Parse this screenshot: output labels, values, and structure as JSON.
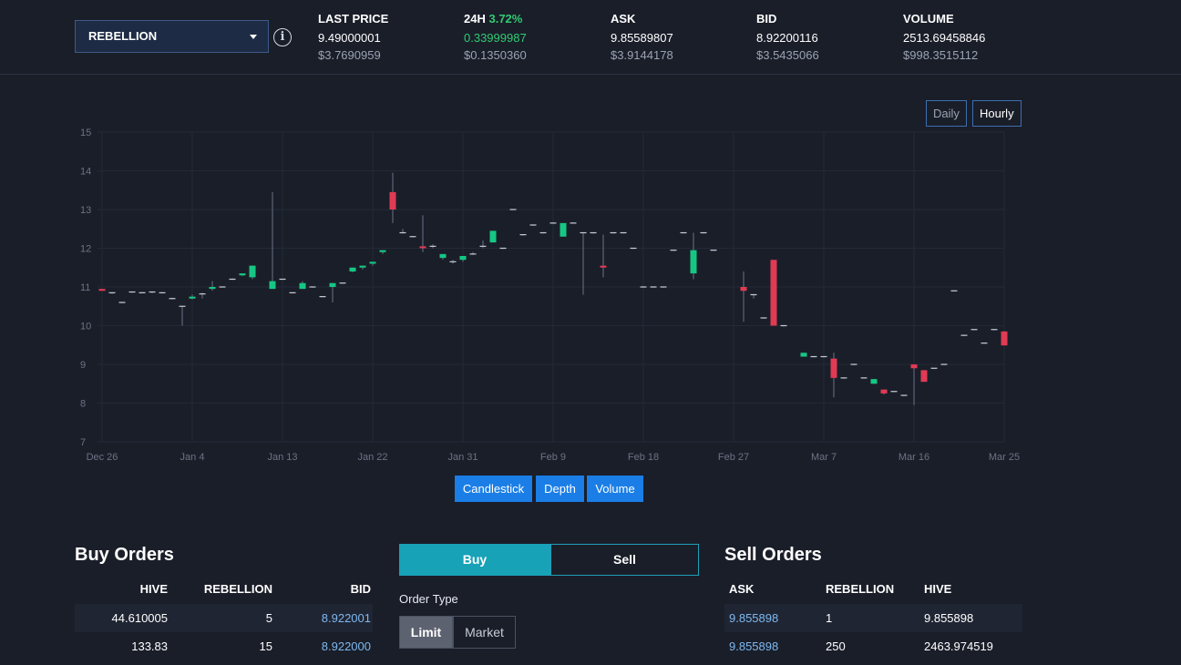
{
  "token_selector": {
    "value": "REBELLION"
  },
  "stats": [
    {
      "label": "LAST PRICE",
      "pct": "",
      "value": "9.49000001",
      "usd": "$3.7690959",
      "green": false
    },
    {
      "label": "24H",
      "pct": "3.72%",
      "value": "0.33999987",
      "usd": "$0.1350360",
      "green": true
    },
    {
      "label": "ASK",
      "pct": "",
      "value": "9.85589807",
      "usd": "$3.9144178",
      "green": false
    },
    {
      "label": "BID",
      "pct": "",
      "value": "8.92200116",
      "usd": "$3.5435066",
      "green": false
    },
    {
      "label": "VOLUME",
      "pct": "",
      "value": "2513.69458846",
      "usd": "$998.3515112",
      "green": false
    }
  ],
  "intervals": {
    "daily": "Daily",
    "hourly": "Hourly"
  },
  "chart_tabs": [
    "Candlestick",
    "Depth",
    "Volume"
  ],
  "chart_data": {
    "type": "candlestick",
    "y_ticks": [
      7,
      8,
      9,
      10,
      11,
      12,
      13,
      14,
      15
    ],
    "ylim": [
      7,
      15
    ],
    "x_tick_labels": [
      "Dec 26",
      "Jan 4",
      "Jan 13",
      "Jan 22",
      "Jan 31",
      "Feb 9",
      "Feb 18",
      "Feb 27",
      "Mar 7",
      "Mar 16",
      "Mar 25"
    ],
    "x_tick_days": [
      0,
      9,
      18,
      27,
      36,
      45,
      54,
      63,
      72,
      81,
      90
    ],
    "grid": true,
    "colors": {
      "up": "#16c784",
      "down": "#e03a54",
      "wick": "#6b7385",
      "grid": "#232938"
    },
    "candles": [
      {
        "d": 0,
        "o": 10.95,
        "h": 10.95,
        "l": 10.9,
        "c": 10.9
      },
      {
        "d": 1,
        "o": 10.85,
        "h": 10.85,
        "l": 10.82,
        "c": 10.84
      },
      {
        "d": 2,
        "o": 10.6,
        "h": 10.6,
        "l": 10.58,
        "c": 10.6
      },
      {
        "d": 3,
        "o": 10.85,
        "h": 10.88,
        "l": 10.85,
        "c": 10.87
      },
      {
        "d": 4,
        "o": 10.85,
        "h": 10.87,
        "l": 10.84,
        "c": 10.85
      },
      {
        "d": 5,
        "o": 10.84,
        "h": 10.88,
        "l": 10.84,
        "c": 10.87
      },
      {
        "d": 6,
        "o": 10.85,
        "h": 10.85,
        "l": 10.83,
        "c": 10.83
      },
      {
        "d": 7,
        "o": 10.7,
        "h": 10.72,
        "l": 10.68,
        "c": 10.7
      },
      {
        "d": 8,
        "o": 10.5,
        "h": 10.5,
        "l": 10.0,
        "c": 10.5
      },
      {
        "d": 9,
        "o": 10.7,
        "h": 10.8,
        "l": 10.68,
        "c": 10.75
      },
      {
        "d": 10,
        "o": 10.8,
        "h": 10.85,
        "l": 10.7,
        "c": 10.82
      },
      {
        "d": 11,
        "o": 10.95,
        "h": 11.15,
        "l": 10.9,
        "c": 11.0
      },
      {
        "d": 12,
        "o": 11.0,
        "h": 11.0,
        "l": 10.98,
        "c": 11.0
      },
      {
        "d": 13,
        "o": 11.2,
        "h": 11.22,
        "l": 11.18,
        "c": 11.2
      },
      {
        "d": 14,
        "o": 11.3,
        "h": 11.35,
        "l": 11.28,
        "c": 11.35
      },
      {
        "d": 15,
        "o": 11.25,
        "h": 11.55,
        "l": 11.2,
        "c": 11.55
      },
      {
        "d": 17,
        "o": 10.95,
        "h": 13.45,
        "l": 10.95,
        "c": 11.15
      },
      {
        "d": 18,
        "o": 11.2,
        "h": 11.2,
        "l": 11.18,
        "c": 11.2
      },
      {
        "d": 19,
        "o": 10.85,
        "h": 10.85,
        "l": 10.83,
        "c": 10.85
      },
      {
        "d": 20,
        "o": 10.95,
        "h": 11.15,
        "l": 10.95,
        "c": 11.1
      },
      {
        "d": 21,
        "o": 11.0,
        "h": 11.0,
        "l": 10.98,
        "c": 11.0
      },
      {
        "d": 22,
        "o": 10.75,
        "h": 10.75,
        "l": 10.73,
        "c": 10.75
      },
      {
        "d": 23,
        "o": 11.0,
        "h": 11.1,
        "l": 10.6,
        "c": 11.1
      },
      {
        "d": 24,
        "o": 11.1,
        "h": 11.1,
        "l": 11.08,
        "c": 11.1
      },
      {
        "d": 25,
        "o": 11.4,
        "h": 11.5,
        "l": 11.38,
        "c": 11.5
      },
      {
        "d": 26,
        "o": 11.5,
        "h": 11.55,
        "l": 11.45,
        "c": 11.55
      },
      {
        "d": 27,
        "o": 11.6,
        "h": 11.65,
        "l": 11.55,
        "c": 11.65
      },
      {
        "d": 28,
        "o": 11.9,
        "h": 11.95,
        "l": 11.85,
        "c": 11.95
      },
      {
        "d": 29,
        "o": 13.45,
        "h": 13.95,
        "l": 12.65,
        "c": 13.0
      },
      {
        "d": 30,
        "o": 12.4,
        "h": 12.5,
        "l": 12.38,
        "c": 12.4
      },
      {
        "d": 31,
        "o": 12.3,
        "h": 12.3,
        "l": 12.28,
        "c": 12.3
      },
      {
        "d": 32,
        "o": 12.05,
        "h": 12.85,
        "l": 11.9,
        "c": 12.0
      },
      {
        "d": 33,
        "o": 12.05,
        "h": 12.1,
        "l": 12.0,
        "c": 12.05
      },
      {
        "d": 34,
        "o": 11.75,
        "h": 11.85,
        "l": 11.7,
        "c": 11.85
      },
      {
        "d": 35,
        "o": 11.65,
        "h": 11.7,
        "l": 11.6,
        "c": 11.65
      },
      {
        "d": 36,
        "o": 11.7,
        "h": 11.8,
        "l": 11.65,
        "c": 11.8
      },
      {
        "d": 37,
        "o": 11.85,
        "h": 11.9,
        "l": 11.83,
        "c": 11.85
      },
      {
        "d": 38,
        "o": 12.05,
        "h": 12.2,
        "l": 12.0,
        "c": 12.05
      },
      {
        "d": 39,
        "o": 12.15,
        "h": 12.45,
        "l": 12.15,
        "c": 12.45
      },
      {
        "d": 40,
        "o": 12.0,
        "h": 12.0,
        "l": 11.98,
        "c": 12.0
      },
      {
        "d": 41,
        "o": 13.0,
        "h": 13.0,
        "l": 12.98,
        "c": 13.0
      },
      {
        "d": 42,
        "o": 12.35,
        "h": 12.35,
        "l": 12.33,
        "c": 12.35
      },
      {
        "d": 43,
        "o": 12.6,
        "h": 12.6,
        "l": 12.58,
        "c": 12.6
      },
      {
        "d": 44,
        "o": 12.4,
        "h": 12.4,
        "l": 12.38,
        "c": 12.4
      },
      {
        "d": 45,
        "o": 12.65,
        "h": 12.65,
        "l": 12.63,
        "c": 12.65
      },
      {
        "d": 46,
        "o": 12.3,
        "h": 12.65,
        "l": 12.3,
        "c": 12.65
      },
      {
        "d": 47,
        "o": 12.65,
        "h": 12.65,
        "l": 12.63,
        "c": 12.65
      },
      {
        "d": 48,
        "o": 12.4,
        "h": 12.4,
        "l": 10.8,
        "c": 12.4
      },
      {
        "d": 49,
        "o": 12.4,
        "h": 12.4,
        "l": 12.38,
        "c": 12.4
      },
      {
        "d": 50,
        "o": 11.55,
        "h": 12.35,
        "l": 11.25,
        "c": 11.5
      },
      {
        "d": 51,
        "o": 12.4,
        "h": 12.4,
        "l": 12.38,
        "c": 12.4
      },
      {
        "d": 52,
        "o": 12.4,
        "h": 12.4,
        "l": 12.38,
        "c": 12.4
      },
      {
        "d": 53,
        "o": 12.0,
        "h": 12.0,
        "l": 11.98,
        "c": 12.0
      },
      {
        "d": 54,
        "o": 11.0,
        "h": 11.0,
        "l": 10.98,
        "c": 11.0
      },
      {
        "d": 55,
        "o": 11.0,
        "h": 11.0,
        "l": 10.98,
        "c": 11.0
      },
      {
        "d": 56,
        "o": 11.0,
        "h": 11.0,
        "l": 10.98,
        "c": 11.0
      },
      {
        "d": 57,
        "o": 11.95,
        "h": 11.95,
        "l": 11.93,
        "c": 11.95
      },
      {
        "d": 58,
        "o": 12.4,
        "h": 12.4,
        "l": 12.38,
        "c": 12.4
      },
      {
        "d": 59,
        "o": 11.35,
        "h": 12.4,
        "l": 11.2,
        "c": 11.95
      },
      {
        "d": 60,
        "o": 12.4,
        "h": 12.4,
        "l": 12.38,
        "c": 12.4
      },
      {
        "d": 61,
        "o": 11.95,
        "h": 11.95,
        "l": 11.93,
        "c": 11.95
      },
      {
        "d": 64,
        "o": 11.0,
        "h": 11.4,
        "l": 10.1,
        "c": 10.9
      },
      {
        "d": 65,
        "o": 10.8,
        "h": 10.8,
        "l": 10.7,
        "c": 10.8
      },
      {
        "d": 66,
        "o": 10.2,
        "h": 10.2,
        "l": 10.18,
        "c": 10.2
      },
      {
        "d": 67,
        "o": 11.7,
        "h": 11.7,
        "l": 10.0,
        "c": 10.0
      },
      {
        "d": 68,
        "o": 10.0,
        "h": 10.0,
        "l": 9.98,
        "c": 10.0
      },
      {
        "d": 70,
        "o": 9.2,
        "h": 9.3,
        "l": 9.2,
        "c": 9.3
      },
      {
        "d": 71,
        "o": 9.2,
        "h": 9.2,
        "l": 9.18,
        "c": 9.2
      },
      {
        "d": 72,
        "o": 9.2,
        "h": 9.2,
        "l": 9.18,
        "c": 9.2
      },
      {
        "d": 73,
        "o": 9.15,
        "h": 9.3,
        "l": 8.15,
        "c": 8.65
      },
      {
        "d": 74,
        "o": 8.65,
        "h": 8.65,
        "l": 8.63,
        "c": 8.65
      },
      {
        "d": 75,
        "o": 9.0,
        "h": 9.0,
        "l": 8.98,
        "c": 9.0
      },
      {
        "d": 76,
        "o": 8.65,
        "h": 8.65,
        "l": 8.63,
        "c": 8.65
      },
      {
        "d": 77,
        "o": 8.5,
        "h": 8.62,
        "l": 8.5,
        "c": 8.62
      },
      {
        "d": 78,
        "o": 8.35,
        "h": 8.35,
        "l": 8.22,
        "c": 8.25
      },
      {
        "d": 79,
        "o": 8.3,
        "h": 8.3,
        "l": 8.28,
        "c": 8.3
      },
      {
        "d": 80,
        "o": 8.2,
        "h": 8.2,
        "l": 8.18,
        "c": 8.2
      },
      {
        "d": 81,
        "o": 9.0,
        "h": 9.0,
        "l": 7.95,
        "c": 8.9
      },
      {
        "d": 82,
        "o": 8.85,
        "h": 8.85,
        "l": 8.55,
        "c": 8.55
      },
      {
        "d": 83,
        "o": 8.9,
        "h": 8.9,
        "l": 8.88,
        "c": 8.9
      },
      {
        "d": 84,
        "o": 9.0,
        "h": 9.0,
        "l": 8.98,
        "c": 9.0
      },
      {
        "d": 85,
        "o": 10.9,
        "h": 10.9,
        "l": 10.88,
        "c": 10.9
      },
      {
        "d": 86,
        "o": 9.75,
        "h": 9.75,
        "l": 9.73,
        "c": 9.75
      },
      {
        "d": 87,
        "o": 9.9,
        "h": 9.9,
        "l": 9.88,
        "c": 9.9
      },
      {
        "d": 88,
        "o": 9.55,
        "h": 9.55,
        "l": 9.53,
        "c": 9.55
      },
      {
        "d": 89,
        "o": 9.9,
        "h": 9.9,
        "l": 9.88,
        "c": 9.9
      },
      {
        "d": 90,
        "o": 9.85,
        "h": 9.86,
        "l": 9.49,
        "c": 9.49
      }
    ]
  },
  "buy_orders": {
    "title": "Buy Orders",
    "headers": [
      "HIVE",
      "REBELLION",
      "BID"
    ],
    "rows": [
      [
        "44.610005",
        "5",
        "8.922001"
      ],
      [
        "133.83",
        "15",
        "8.922000"
      ]
    ]
  },
  "trade_form": {
    "buy_label": "Buy",
    "sell_label": "Sell",
    "order_type_label": "Order Type",
    "limit_label": "Limit",
    "market_label": "Market"
  },
  "sell_orders": {
    "title": "Sell Orders",
    "headers": [
      "ASK",
      "REBELLION",
      "HIVE"
    ],
    "rows": [
      [
        "9.855898",
        "1",
        "9.855898"
      ],
      [
        "9.855898",
        "250",
        "2463.974519"
      ]
    ]
  }
}
